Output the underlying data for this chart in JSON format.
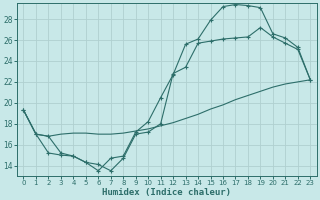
{
  "xlabel": "Humidex (Indice chaleur)",
  "bg_color": "#c8e8e8",
  "line_color": "#2d6e6a",
  "grid_color": "#b0d0d0",
  "xlim": [
    -0.5,
    23.5
  ],
  "ylim": [
    13.0,
    29.5
  ],
  "xticks": [
    0,
    1,
    2,
    3,
    4,
    5,
    6,
    7,
    8,
    9,
    10,
    11,
    12,
    13,
    14,
    15,
    16,
    17,
    18,
    19,
    20,
    21,
    22,
    23
  ],
  "yticks": [
    14,
    16,
    18,
    20,
    22,
    24,
    26,
    28
  ],
  "curve1_x": [
    0,
    1,
    2,
    3,
    4,
    5,
    6,
    7,
    8,
    9,
    10,
    11,
    12,
    13,
    14,
    15,
    16,
    17,
    18,
    19,
    20,
    21,
    22,
    23
  ],
  "curve1_y": [
    19.3,
    17.0,
    16.8,
    15.2,
    14.9,
    14.3,
    13.5,
    14.7,
    14.9,
    17.2,
    18.2,
    20.5,
    22.7,
    25.6,
    26.1,
    27.9,
    29.2,
    29.4,
    29.3,
    29.1,
    26.6,
    26.2,
    25.3,
    22.2
  ],
  "curve2_x": [
    0,
    1,
    2,
    3,
    4,
    5,
    6,
    7,
    8,
    9,
    10,
    11,
    12,
    13,
    14,
    15,
    16,
    17,
    18,
    19,
    20,
    21,
    22,
    23
  ],
  "curve2_y": [
    19.3,
    17.0,
    15.2,
    15.0,
    14.9,
    14.3,
    14.1,
    13.5,
    14.7,
    17.0,
    17.2,
    18.0,
    22.8,
    23.4,
    25.7,
    25.9,
    26.1,
    26.2,
    26.3,
    27.2,
    26.3,
    25.7,
    25.1,
    22.2
  ],
  "curve3_x": [
    0,
    1,
    2,
    3,
    4,
    5,
    6,
    7,
    8,
    9,
    10,
    11,
    12,
    13,
    14,
    15,
    16,
    17,
    18,
    19,
    20,
    21,
    22,
    23
  ],
  "curve3_y": [
    19.3,
    17.0,
    16.8,
    17.0,
    17.1,
    17.1,
    17.0,
    17.0,
    17.1,
    17.3,
    17.5,
    17.8,
    18.1,
    18.5,
    18.9,
    19.4,
    19.8,
    20.3,
    20.7,
    21.1,
    21.5,
    21.8,
    22.0,
    22.2
  ]
}
